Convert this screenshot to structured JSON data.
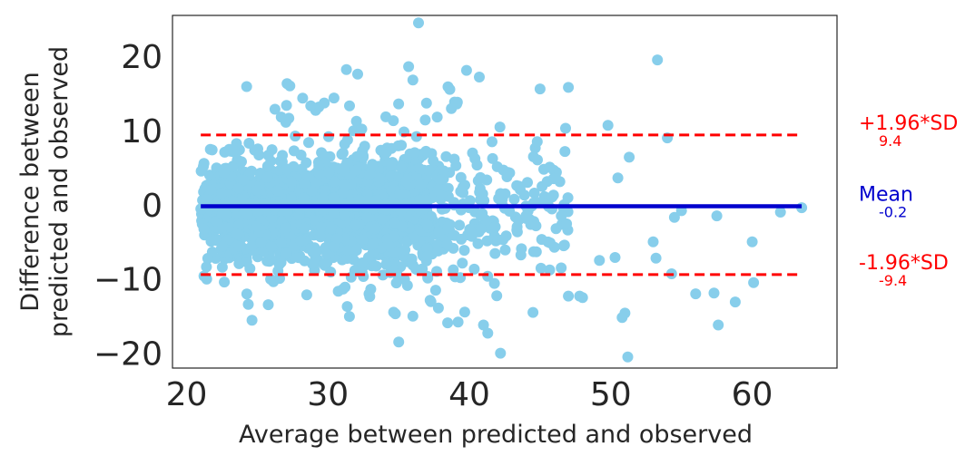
{
  "chart_data": {
    "type": "scatter",
    "title": "",
    "xlabel": "Average between predicted and observed",
    "ylabel_lines": [
      "Difference between",
      "predicted and observed"
    ],
    "xlim": [
      19,
      66
    ],
    "ylim": [
      -22,
      25.5
    ],
    "xticks": [
      20,
      30,
      40,
      50,
      60
    ],
    "xtick_labels": [
      "20",
      "30",
      "40",
      "50",
      "60"
    ],
    "yticks": [
      20,
      10,
      0,
      -10,
      -20
    ],
    "ytick_labels": [
      "20",
      "10",
      "0",
      "−10",
      "−20"
    ],
    "grid": false,
    "colors": {
      "points": "#87CEEB",
      "mean": "#0000CD",
      "limits": "#FF0000",
      "axes": "#262626"
    },
    "mean_line": {
      "label": "Mean",
      "value_label": "-0.2",
      "y": -0.2,
      "x_range": [
        21,
        63.5
      ]
    },
    "upper_limit": {
      "label": "+1.96*SD",
      "value_label": "9.4",
      "y": 9.4,
      "x_range": [
        21,
        63.5
      ]
    },
    "lower_limit": {
      "label": "-1.96*SD",
      "value_label": "-9.4",
      "y": -9.4,
      "x_range": [
        21,
        63.5
      ]
    },
    "outlier_points": [
      [
        36.4,
        24.5
      ],
      [
        53.3,
        19.5
      ],
      [
        35.7,
        18.6
      ],
      [
        31.3,
        18.2
      ],
      [
        32.1,
        17.6
      ],
      [
        39.8,
        18.1
      ],
      [
        27.1,
        16.3
      ],
      [
        27.3,
        16.0
      ],
      [
        45.0,
        15.6
      ],
      [
        47.0,
        15.8
      ],
      [
        40.7,
        17.2
      ],
      [
        36.0,
        16.8
      ],
      [
        54.0,
        9.0
      ],
      [
        49.8,
        10.7
      ],
      [
        44.8,
        8.5
      ],
      [
        46.8,
        10.3
      ],
      [
        51.3,
        6.4
      ],
      [
        50.5,
        3.6
      ],
      [
        63.5,
        -0.4
      ],
      [
        57.5,
        -1.5
      ],
      [
        54.5,
        -1.7
      ],
      [
        60.0,
        -5.0
      ],
      [
        53.0,
        -5.0
      ],
      [
        53.2,
        -7.2
      ],
      [
        49.2,
        -7.5
      ],
      [
        50.3,
        -7.1
      ],
      [
        54.3,
        -9.3
      ],
      [
        56.0,
        -12.0
      ],
      [
        57.3,
        -11.9
      ],
      [
        58.8,
        -13.1
      ],
      [
        60.1,
        -10.5
      ],
      [
        57.6,
        -16.2
      ],
      [
        51.0,
        -14.6
      ],
      [
        50.8,
        -15.2
      ],
      [
        51.2,
        -20.5
      ],
      [
        42.2,
        -20.0
      ],
      [
        41.3,
        -17.3
      ],
      [
        41.0,
        -16.2
      ],
      [
        39.2,
        -15.8
      ],
      [
        36.0,
        -15.0
      ],
      [
        35.0,
        -18.5
      ],
      [
        44.5,
        -14.5
      ],
      [
        47.0,
        -12.3
      ],
      [
        47.8,
        -12.3
      ],
      [
        48.0,
        -12.5
      ],
      [
        62.0,
        -1.0
      ],
      [
        55.0,
        -0.8
      ],
      [
        46.5,
        -1.5
      ],
      [
        44.0,
        -1.5
      ],
      [
        42.2,
        1.5
      ],
      [
        43.5,
        2.5
      ]
    ]
  }
}
